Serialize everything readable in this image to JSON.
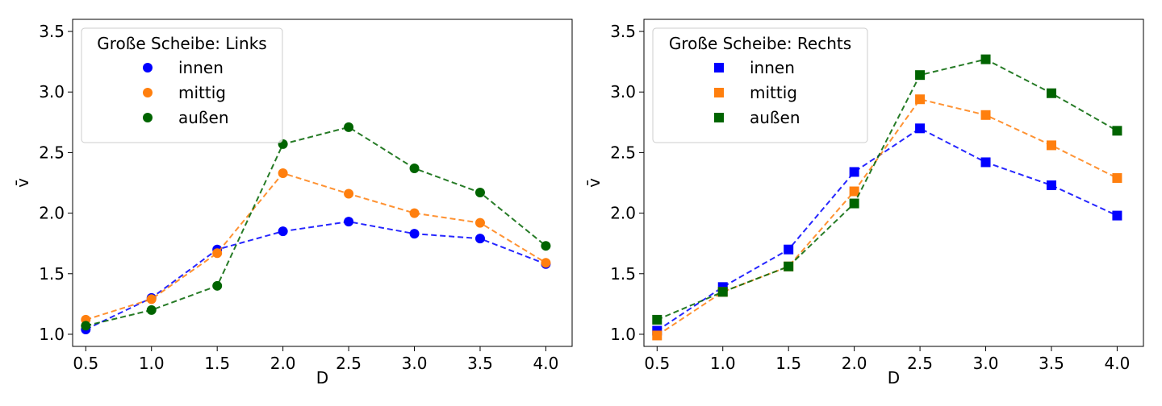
{
  "chart_data": [
    {
      "type": "line",
      "marker": "circle",
      "x": [
        0.5,
        1.0,
        1.5,
        2.0,
        2.5,
        3.0,
        3.5,
        4.0
      ],
      "xlabel": "D",
      "ylabel": "v̄",
      "xlim": [
        0.4,
        4.2
      ],
      "ylim": [
        0.9,
        3.6
      ],
      "xticks": [
        "0.5",
        "1.0",
        "1.5",
        "2.0",
        "2.5",
        "3.0",
        "3.5",
        "4.0"
      ],
      "yticks": [
        "1.0",
        "1.5",
        "2.0",
        "2.5",
        "3.0",
        "3.5"
      ],
      "grid": false,
      "legend": {
        "title": "Große Scheibe: Links",
        "placement": "top-left"
      },
      "series": [
        {
          "name": "innen",
          "color": "#0000ff",
          "values": [
            1.04,
            1.3,
            1.7,
            1.85,
            1.93,
            1.83,
            1.79,
            1.58
          ]
        },
        {
          "name": "mittig",
          "color": "#ff7f0e",
          "values": [
            1.12,
            1.29,
            1.67,
            2.33,
            2.16,
            2.0,
            1.92,
            1.59
          ]
        },
        {
          "name": "außen",
          "color": "#006400",
          "values": [
            1.07,
            1.2,
            1.4,
            2.57,
            2.71,
            2.37,
            2.17,
            1.73
          ]
        }
      ]
    },
    {
      "type": "line",
      "marker": "square",
      "x": [
        0.5,
        1.0,
        1.5,
        2.0,
        2.5,
        3.0,
        3.5,
        4.0
      ],
      "xlabel": "D",
      "ylabel": "v̄",
      "xlim": [
        0.4,
        4.2
      ],
      "ylim": [
        0.9,
        3.6
      ],
      "xticks": [
        "0.5",
        "1.0",
        "1.5",
        "2.0",
        "2.5",
        "3.0",
        "3.5",
        "4.0"
      ],
      "yticks": [
        "1.0",
        "1.5",
        "2.0",
        "2.5",
        "3.0",
        "3.5"
      ],
      "grid": false,
      "legend": {
        "title": "Große Scheibe: Rechts",
        "placement": "top-left"
      },
      "series": [
        {
          "name": "innen",
          "color": "#0000ff",
          "values": [
            1.03,
            1.39,
            1.7,
            2.34,
            2.7,
            2.42,
            2.23,
            1.98
          ]
        },
        {
          "name": "mittig",
          "color": "#ff7f0e",
          "values": [
            0.99,
            1.35,
            1.56,
            2.18,
            2.94,
            2.81,
            2.56,
            2.29
          ]
        },
        {
          "name": "außen",
          "color": "#006400",
          "values": [
            1.12,
            1.35,
            1.56,
            2.08,
            3.14,
            3.27,
            2.99,
            2.68
          ]
        }
      ]
    }
  ]
}
